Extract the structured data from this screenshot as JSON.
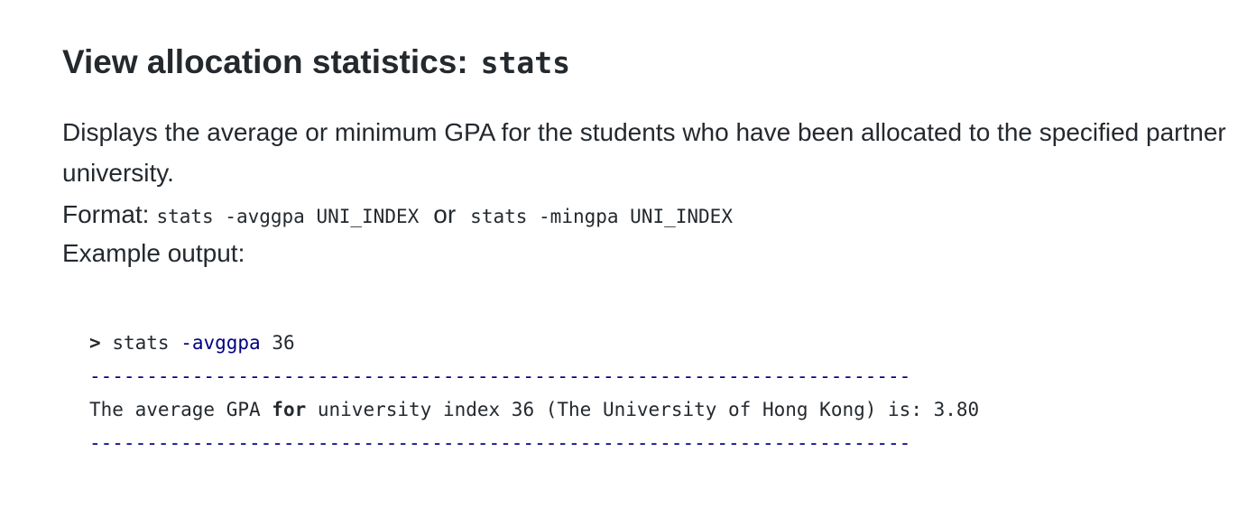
{
  "section": {
    "heading_text": "View allocation statistics:",
    "heading_command": "stats",
    "description": "Displays the average or minimum GPA for the students who have been allocated to the specified partner university.",
    "format_label": "Format:",
    "format_avg": "stats -avggpa UNI_INDEX",
    "format_or": "or",
    "format_min": "stats -mingpa UNI_INDEX",
    "example_label": "Example output:"
  },
  "code": {
    "prompt": ">",
    "command": "stats",
    "flag": "-avggpa",
    "arg": "36",
    "separator": "------------------------------------------------------------------------",
    "output_pre": "The average GPA ",
    "output_kw": "for",
    "output_post": " university index 36 (The University of Hong Kong) is: 3.80"
  }
}
